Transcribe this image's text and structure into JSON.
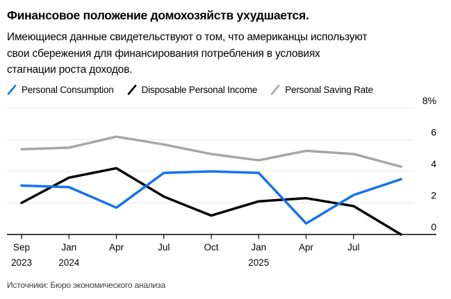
{
  "title": "Финансовое положение домохозяйств ухудшается.",
  "subtitle_lines": [
    "Имеющиеся данные свидетельствуют о том, что американцы используют",
    "свои сбережения для финансирования потребления в условиях",
    "стагнации роста доходов."
  ],
  "source": "Источники: Бюро экономического анализа",
  "chart_data": {
    "type": "line",
    "categories": [
      "Sep 2023",
      "Jan 2024",
      "Apr 2024",
      "Jul 2024",
      "Oct 2024",
      "Jan 2025",
      "Apr 2025",
      "Jul 2025",
      ""
    ],
    "x_ticks": [
      {
        "month": "Sep",
        "year": "2023"
      },
      {
        "month": "Jan",
        "year": "2024"
      },
      {
        "month": "Apr",
        "year": ""
      },
      {
        "month": "Jul",
        "year": ""
      },
      {
        "month": "Oct",
        "year": ""
      },
      {
        "month": "Jan",
        "year": "2025"
      },
      {
        "month": "Apr",
        "year": ""
      },
      {
        "month": "Jul",
        "year": ""
      }
    ],
    "n_points": 9,
    "series": [
      {
        "name": "Personal Consumption",
        "color": "#1272f2",
        "values": [
          3.1,
          3.0,
          1.7,
          3.9,
          4.0,
          3.9,
          0.7,
          2.5,
          3.5
        ]
      },
      {
        "name": "Disposable Personal Income",
        "color": "#000000",
        "values": [
          2.0,
          3.6,
          4.2,
          2.4,
          1.2,
          2.1,
          2.3,
          1.8,
          0.0
        ]
      },
      {
        "name": "Personal Saving Rate",
        "color": "#a6a6a6",
        "values": [
          5.4,
          5.5,
          6.2,
          5.7,
          5.1,
          4.7,
          5.3,
          5.1,
          4.3
        ]
      }
    ],
    "yticks": [
      {
        "value": 8,
        "label": "8%"
      },
      {
        "value": 6,
        "label": "6"
      },
      {
        "value": 4,
        "label": "4"
      },
      {
        "value": 2,
        "label": "2"
      },
      {
        "value": 0,
        "label": "0"
      }
    ],
    "ylim": [
      0,
      8
    ],
    "grid": true,
    "legend_position": "top",
    "grid_color": "#e9e9e9",
    "axis_color": "#000000"
  }
}
